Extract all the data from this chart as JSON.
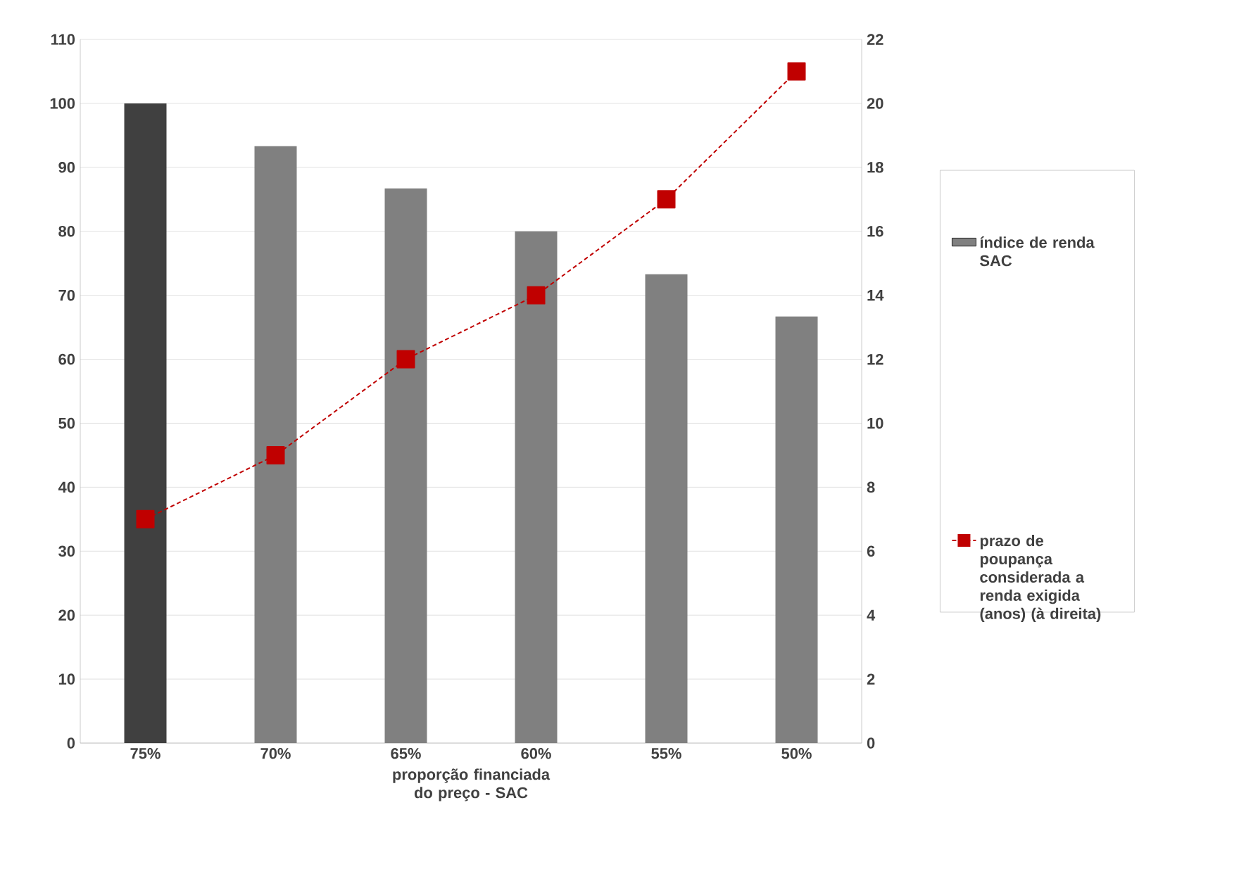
{
  "chart_data": {
    "type": "bar",
    "xlabel": "proporção financiada do preço - SAC",
    "categories": [
      "75%",
      "70%",
      "65%",
      "60%",
      "55%",
      "50%"
    ],
    "series": [
      {
        "name": "índice de renda SAC",
        "colors": [
          "#404040",
          "#808080",
          "#808080",
          "#808080",
          "#808080",
          "#808080"
        ],
        "color": "#808080",
        "values": [
          100,
          93.3,
          86.7,
          80,
          73.3,
          66.7
        ]
      },
      {
        "name": "prazo de poupança considerada a renda exigida (anos) (à direita)",
        "type": "line",
        "axis": "y2",
        "color": "#c00000",
        "marker": "square",
        "line_style": "dashed",
        "values": [
          7,
          9,
          12,
          14,
          17,
          21
        ]
      }
    ],
    "ylim": [
      0,
      110
    ],
    "yticks": [
      0,
      10,
      20,
      30,
      40,
      50,
      60,
      70,
      80,
      90,
      100,
      110
    ],
    "y2lim": [
      0,
      22
    ],
    "y2ticks": [
      0,
      2,
      4,
      6,
      8,
      10,
      12,
      14,
      16,
      18,
      20,
      22
    ],
    "grid": "y",
    "legend": "right"
  }
}
